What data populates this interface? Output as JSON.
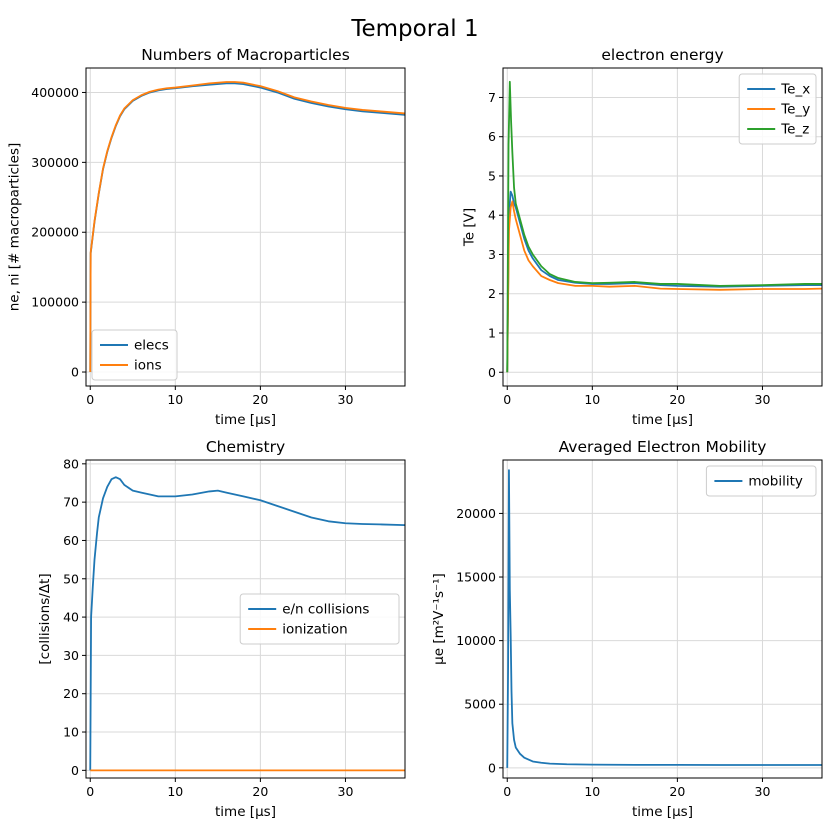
{
  "figure": {
    "suptitle": "Temporal 1"
  },
  "chart_data": [
    {
      "type": "line",
      "title": "Numbers of Macroparticles",
      "xlabel": "time [μs]",
      "ylabel": "ne, ni [# macroparticles]",
      "xlim": [
        -0.5,
        37
      ],
      "ylim": [
        -20000,
        435000
      ],
      "xticks": [
        0,
        10,
        20,
        30
      ],
      "yticks": [
        0,
        100000,
        200000,
        300000,
        400000
      ],
      "grid": true,
      "legend_position": "lower-left",
      "series": [
        {
          "name": "elecs",
          "color": "#1f77b4",
          "x": [
            0,
            0.05,
            0.5,
            1,
            1.5,
            2,
            2.5,
            3,
            3.5,
            4,
            5,
            6,
            7,
            8,
            9,
            10,
            12,
            14,
            16,
            17,
            18,
            20,
            22,
            24,
            26,
            28,
            30,
            32,
            34,
            37
          ],
          "y": [
            0,
            170000,
            215000,
            255000,
            290000,
            315000,
            335000,
            352000,
            366000,
            376000,
            388000,
            395000,
            400000,
            403000,
            405000,
            406000,
            409000,
            411000,
            413000,
            413000,
            412000,
            407000,
            400000,
            391000,
            385000,
            380000,
            376000,
            373000,
            371000,
            368000
          ]
        },
        {
          "name": "ions",
          "color": "#ff7f0e",
          "x": [
            0,
            0.05,
            0.5,
            1,
            1.5,
            2,
            2.5,
            3,
            3.5,
            4,
            5,
            6,
            7,
            8,
            9,
            10,
            12,
            14,
            16,
            17,
            18,
            20,
            22,
            24,
            26,
            28,
            30,
            32,
            34,
            37
          ],
          "y": [
            0,
            171000,
            216000,
            256000,
            291000,
            316000,
            336000,
            353000,
            367000,
            377000,
            389000,
            396000,
            401000,
            404000,
            406000,
            407000,
            410000,
            413000,
            415000,
            415000,
            414000,
            409000,
            402000,
            393000,
            387000,
            382000,
            378000,
            375000,
            373000,
            370000
          ]
        }
      ]
    },
    {
      "type": "line",
      "title": "electron energy",
      "xlabel": "time [μs]",
      "ylabel": "Te [V]",
      "xlim": [
        -0.5,
        37
      ],
      "ylim": [
        -0.35,
        7.75
      ],
      "xticks": [
        0,
        10,
        20,
        30
      ],
      "yticks": [
        0,
        1,
        2,
        3,
        4,
        5,
        6,
        7
      ],
      "grid": true,
      "legend_position": "top-right",
      "series": [
        {
          "name": "Te_x",
          "color": "#1f77b4",
          "x": [
            0,
            0.2,
            0.4,
            0.6,
            0.8,
            1,
            1.5,
            2,
            2.5,
            3,
            4,
            5,
            6,
            8,
            10,
            12,
            15,
            18,
            20,
            25,
            30,
            35,
            37
          ],
          "y": [
            0,
            4.0,
            4.6,
            4.5,
            4.3,
            4.2,
            3.8,
            3.4,
            3.1,
            2.9,
            2.6,
            2.45,
            2.35,
            2.28,
            2.25,
            2.25,
            2.27,
            2.22,
            2.2,
            2.18,
            2.2,
            2.22,
            2.22
          ]
        },
        {
          "name": "Te_y",
          "color": "#ff7f0e",
          "x": [
            0,
            0.2,
            0.4,
            0.6,
            0.8,
            1,
            1.5,
            2,
            2.5,
            3,
            4,
            5,
            6,
            8,
            10,
            12,
            15,
            18,
            20,
            25,
            30,
            35,
            37
          ],
          "y": [
            0,
            3.6,
            4.2,
            4.35,
            4.1,
            3.9,
            3.5,
            3.1,
            2.85,
            2.7,
            2.45,
            2.35,
            2.27,
            2.2,
            2.2,
            2.18,
            2.2,
            2.13,
            2.12,
            2.1,
            2.12,
            2.12,
            2.13
          ]
        },
        {
          "name": "Te_z",
          "color": "#2ca02c",
          "x": [
            0,
            0.15,
            0.3,
            0.45,
            0.6,
            0.8,
            1,
            1.5,
            2,
            2.5,
            3,
            4,
            5,
            6,
            8,
            10,
            12,
            15,
            18,
            20,
            25,
            30,
            35,
            37
          ],
          "y": [
            0,
            5.8,
            7.4,
            6.4,
            5.6,
            4.7,
            4.3,
            3.9,
            3.5,
            3.2,
            3.0,
            2.7,
            2.5,
            2.4,
            2.3,
            2.27,
            2.28,
            2.3,
            2.25,
            2.25,
            2.2,
            2.22,
            2.25,
            2.25
          ]
        }
      ]
    },
    {
      "type": "line",
      "title": "Chemistry",
      "xlabel": "time [μs]",
      "ylabel": "[collisions/Δt]",
      "xlim": [
        -0.5,
        37
      ],
      "ylim": [
        -2,
        81
      ],
      "xticks": [
        0,
        10,
        20,
        30
      ],
      "yticks": [
        0,
        10,
        20,
        30,
        40,
        50,
        60,
        70,
        80
      ],
      "grid": true,
      "legend_position": "center-right",
      "series": [
        {
          "name": "e/n collisions",
          "color": "#1f77b4",
          "x": [
            0,
            0.1,
            0.3,
            0.5,
            0.8,
            1,
            1.5,
            2,
            2.5,
            3,
            3.5,
            4,
            5,
            6,
            7,
            8,
            10,
            12,
            14,
            15,
            16,
            18,
            20,
            22,
            24,
            26,
            28,
            30,
            32,
            34,
            37
          ],
          "y": [
            0,
            40,
            48,
            55,
            62,
            66,
            71,
            74,
            76,
            76.5,
            76,
            74.5,
            73,
            72.5,
            72,
            71.5,
            71.5,
            72,
            72.8,
            73,
            72.5,
            71.5,
            70.5,
            69,
            67.5,
            66,
            65,
            64.5,
            64.3,
            64.2,
            64
          ]
        },
        {
          "name": "ionization",
          "color": "#ff7f0e",
          "x": [
            0,
            37
          ],
          "y": [
            0,
            0
          ]
        }
      ]
    },
    {
      "type": "line",
      "title": "Averaged Electron Mobility",
      "xlabel": "time [μs]",
      "ylabel": "μe [m²V⁻¹s⁻¹]",
      "xlim": [
        -0.5,
        37
      ],
      "ylim": [
        -800,
        24200
      ],
      "xticks": [
        0,
        10,
        20,
        30
      ],
      "yticks": [
        0,
        5000,
        10000,
        15000,
        20000
      ],
      "grid": true,
      "legend_position": "top-right",
      "series": [
        {
          "name": "mobility",
          "color": "#1f77b4",
          "x": [
            0,
            0.1,
            0.2,
            0.3,
            0.4,
            0.5,
            0.6,
            0.8,
            1,
            1.5,
            2,
            3,
            4,
            5,
            7,
            10,
            15,
            20,
            25,
            30,
            35,
            37
          ],
          "y": [
            0,
            8000,
            23400,
            14000,
            10500,
            6000,
            3500,
            2200,
            1600,
            1100,
            800,
            500,
            400,
            330,
            280,
            250,
            230,
            230,
            220,
            220,
            220,
            220
          ]
        }
      ]
    }
  ]
}
